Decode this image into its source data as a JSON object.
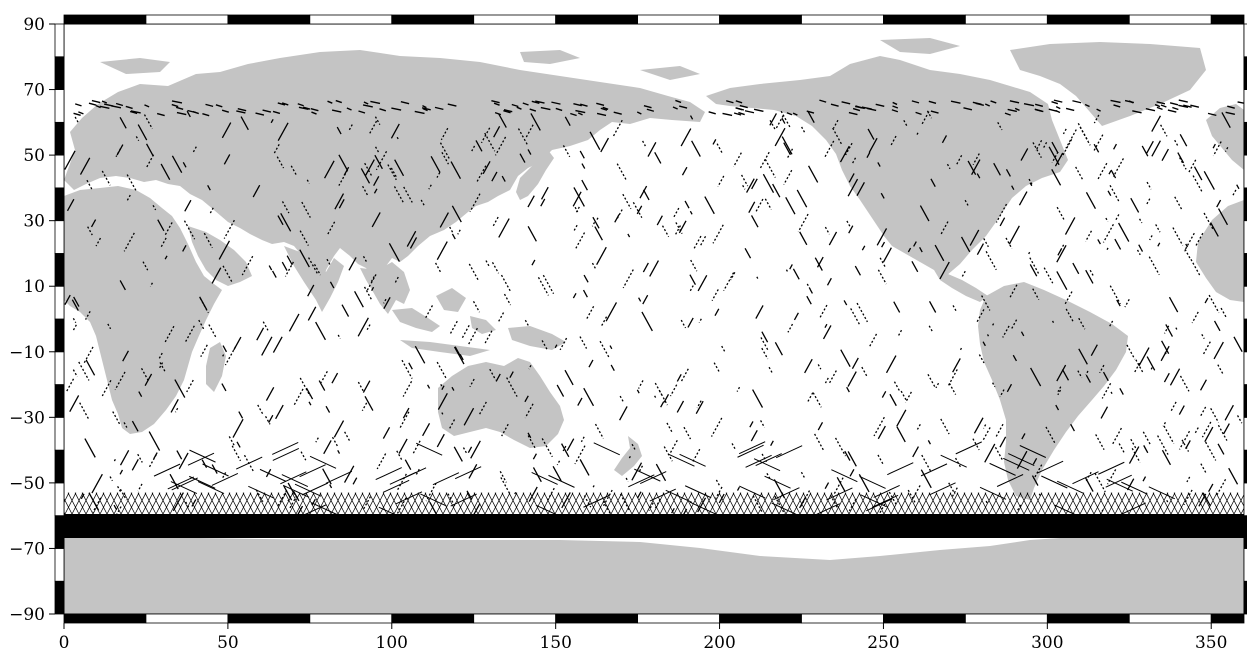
{
  "map": {
    "projection": "equirectangular",
    "lon_range": [
      0,
      360
    ],
    "lat_range": [
      -90,
      90
    ],
    "land_color": "#c4c4c4",
    "ocean_color": "#ffffff",
    "track_color": "#000000",
    "frame_style": "alternating black/white graticule border",
    "x_ticks": [
      "0",
      "50",
      "100",
      "150",
      "200",
      "250",
      "300",
      "350"
    ],
    "y_ticks": [
      "90",
      "70",
      "50",
      "30",
      "10",
      "-10",
      "-30",
      "-50",
      "-70",
      "-90"
    ],
    "y_tick_values": [
      90,
      70,
      50,
      30,
      10,
      -10,
      -30,
      -50,
      -70,
      -90
    ],
    "x_tick_values": [
      0,
      50,
      100,
      150,
      200,
      250,
      300,
      350
    ],
    "track_band_lat_range": [
      -66,
      -53
    ]
  }
}
